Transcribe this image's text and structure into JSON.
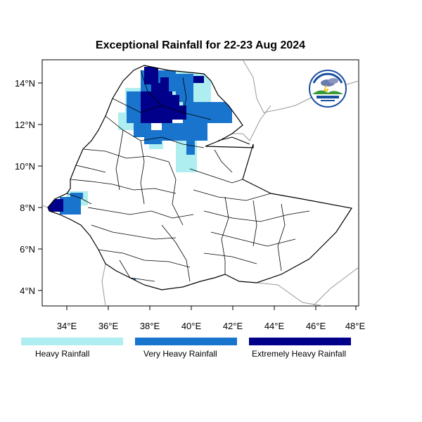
{
  "title": "Exceptional Rainfall for 22-23 Aug 2024",
  "axes": {
    "lat_ticks": [
      "14°N",
      "12°N",
      "10°N",
      "8°N",
      "6°N",
      "4°N"
    ],
    "lon_ticks": [
      "34°E",
      "36°E",
      "38°E",
      "40°E",
      "42°E",
      "44°E",
      "46°E",
      "48°E"
    ]
  },
  "legend": [
    {
      "label": "Heavy Rainfall",
      "color": "#aeeef0"
    },
    {
      "label": "Very Heavy Rainfall",
      "color": "#1874cd"
    },
    {
      "label": "Extremely Heavy Rainfall",
      "color": "#00008b"
    }
  ],
  "colors": {
    "heavy": "#aeeef0",
    "very_heavy": "#1874cd",
    "extreme": "#00008b",
    "border": "#000000",
    "neighbor_border": "#999999"
  },
  "logo": {
    "icon": "agency-logo-icon"
  }
}
